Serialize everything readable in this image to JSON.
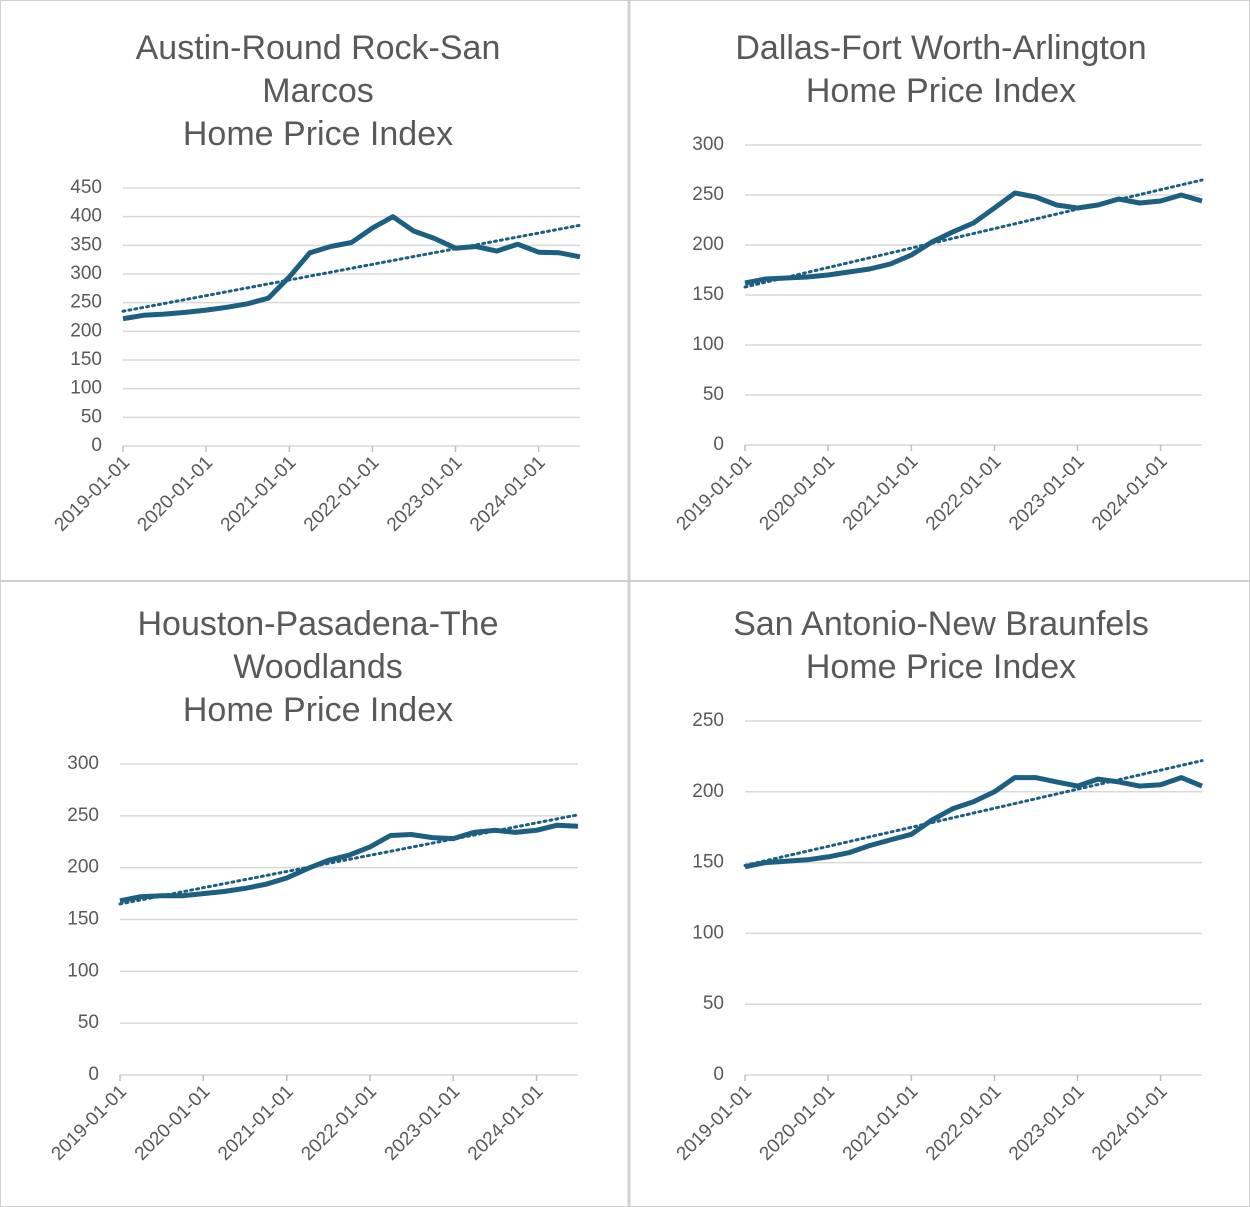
{
  "chart_data": [
    {
      "type": "line",
      "title": [
        "Austin-Round Rock-San",
        "Marcos",
        "Home Price Index"
      ],
      "x": [
        "2019-01-01",
        "2019-04-01",
        "2019-07-01",
        "2019-10-01",
        "2020-01-01",
        "2020-04-01",
        "2020-07-01",
        "2020-10-01",
        "2021-01-01",
        "2021-04-01",
        "2021-07-01",
        "2021-10-01",
        "2022-01-01",
        "2022-04-01",
        "2022-07-01",
        "2022-10-01",
        "2023-01-01",
        "2023-04-01",
        "2023-07-01",
        "2023-10-01",
        "2024-01-01",
        "2024-04-01",
        "2024-07-01"
      ],
      "values": [
        222,
        228,
        230,
        233,
        237,
        242,
        248,
        258,
        295,
        337,
        348,
        355,
        380,
        400,
        375,
        362,
        345,
        348,
        340,
        352,
        338,
        337,
        330
      ],
      "trendline": [
        235,
        385
      ],
      "color": "#1d5f80",
      "xlim": [
        "2019-01-01",
        "2024-07-01"
      ],
      "xticks": [
        "2019-01-01",
        "2020-01-01",
        "2021-01-01",
        "2022-01-01",
        "2023-01-01",
        "2024-01-01"
      ],
      "ylim": [
        0,
        450
      ],
      "yticks": [
        0,
        50,
        100,
        150,
        200,
        250,
        300,
        350,
        400,
        450
      ],
      "grid": true
    },
    {
      "type": "line",
      "title": [
        "Dallas-Fort Worth-Arlington",
        "Home Price Index"
      ],
      "x": [
        "2019-01-01",
        "2019-04-01",
        "2019-07-01",
        "2019-10-01",
        "2020-01-01",
        "2020-04-01",
        "2020-07-01",
        "2020-10-01",
        "2021-01-01",
        "2021-04-01",
        "2021-07-01",
        "2021-10-01",
        "2022-01-01",
        "2022-04-01",
        "2022-07-01",
        "2022-10-01",
        "2023-01-01",
        "2023-04-01",
        "2023-07-01",
        "2023-10-01",
        "2024-01-01",
        "2024-04-01",
        "2024-07-01"
      ],
      "values": [
        162,
        166,
        167,
        168,
        170,
        173,
        176,
        181,
        190,
        203,
        213,
        222,
        237,
        252,
        248,
        240,
        237,
        240,
        246,
        242,
        244,
        250,
        244
      ],
      "trendline": [
        158,
        265
      ],
      "color": "#1d5f80",
      "xlim": [
        "2019-01-01",
        "2024-07-01"
      ],
      "xticks": [
        "2019-01-01",
        "2020-01-01",
        "2021-01-01",
        "2022-01-01",
        "2023-01-01",
        "2024-01-01"
      ],
      "ylim": [
        0,
        300
      ],
      "yticks": [
        0,
        50,
        100,
        150,
        200,
        250,
        300
      ],
      "grid": true
    },
    {
      "type": "line",
      "title": [
        "Houston-Pasadena-The",
        "Woodlands",
        "Home Price Index"
      ],
      "x": [
        "2019-01-01",
        "2019-04-01",
        "2019-07-01",
        "2019-10-01",
        "2020-01-01",
        "2020-04-01",
        "2020-07-01",
        "2020-10-01",
        "2021-01-01",
        "2021-04-01",
        "2021-07-01",
        "2021-10-01",
        "2022-01-01",
        "2022-04-01",
        "2022-07-01",
        "2022-10-01",
        "2023-01-01",
        "2023-04-01",
        "2023-07-01",
        "2023-10-01",
        "2024-01-01",
        "2024-04-01",
        "2024-07-01"
      ],
      "values": [
        168,
        172,
        173,
        173,
        175,
        177,
        180,
        184,
        190,
        199,
        207,
        212,
        220,
        231,
        232,
        229,
        228,
        234,
        236,
        234,
        236,
        241,
        240
      ],
      "trendline": [
        165,
        251
      ],
      "color": "#1d5f80",
      "xlim": [
        "2019-01-01",
        "2024-07-01"
      ],
      "xticks": [
        "2019-01-01",
        "2020-01-01",
        "2021-01-01",
        "2022-01-01",
        "2023-01-01",
        "2024-01-01"
      ],
      "ylim": [
        0,
        300
      ],
      "yticks": [
        0,
        50,
        100,
        150,
        200,
        250,
        300
      ],
      "grid": true
    },
    {
      "type": "line",
      "title": [
        "San Antonio-New Braunfels",
        "Home Price Index"
      ],
      "x": [
        "2019-01-01",
        "2019-04-01",
        "2019-07-01",
        "2019-10-01",
        "2020-01-01",
        "2020-04-01",
        "2020-07-01",
        "2020-10-01",
        "2021-01-01",
        "2021-04-01",
        "2021-07-01",
        "2021-10-01",
        "2022-01-01",
        "2022-04-01",
        "2022-07-01",
        "2022-10-01",
        "2023-01-01",
        "2023-04-01",
        "2023-07-01",
        "2023-10-01",
        "2024-01-01",
        "2024-04-01",
        "2024-07-01"
      ],
      "values": [
        147,
        150,
        151,
        152,
        154,
        157,
        162,
        166,
        170,
        180,
        188,
        193,
        200,
        210,
        210,
        207,
        204,
        209,
        207,
        204,
        205,
        210,
        204
      ],
      "trendline": [
        148,
        222
      ],
      "color": "#1d5f80",
      "xlim": [
        "2019-01-01",
        "2024-07-01"
      ],
      "xticks": [
        "2019-01-01",
        "2020-01-01",
        "2021-01-01",
        "2022-01-01",
        "2023-01-01",
        "2024-01-01"
      ],
      "ylim": [
        0,
        250
      ],
      "yticks": [
        0,
        50,
        100,
        150,
        200,
        250
      ],
      "grid": true
    }
  ]
}
